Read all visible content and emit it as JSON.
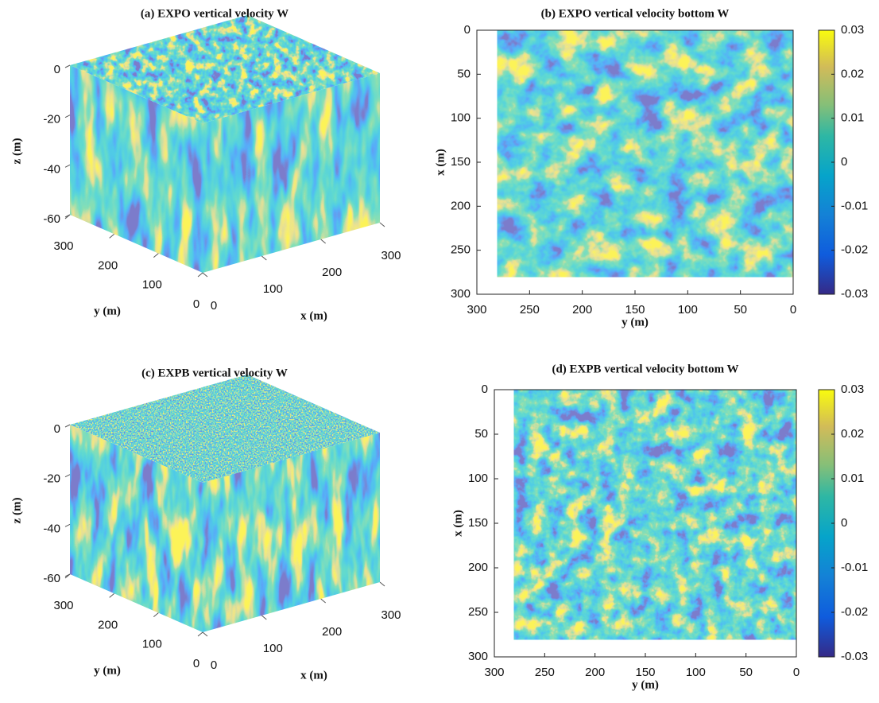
{
  "chart_data": [
    {
      "type": "box3d",
      "title": "(a) EXPO vertical velocity W",
      "xlabel": "x (m)",
      "ylabel": "y (m)",
      "zlabel": "z (m)",
      "xlim": [
        0,
        300
      ],
      "ylim": [
        0,
        300
      ],
      "zlim": [
        -60,
        0
      ],
      "xticks": [
        0,
        100,
        200,
        300
      ],
      "yticks": [
        0,
        100,
        200,
        300
      ],
      "zticks": [
        -60,
        -40,
        -20,
        0
      ]
    },
    {
      "type": "heatmap",
      "title": "(b) EXPO vertical velocity bottom W",
      "xlabel": "y (m)",
      "ylabel": "x (m)",
      "xlim": [
        300,
        0
      ],
      "ylim": [
        300,
        0
      ],
      "xticks": [
        300,
        250,
        200,
        150,
        100,
        50,
        0
      ],
      "yticks": [
        300,
        250,
        200,
        150,
        100,
        50,
        0
      ],
      "clim": [
        -0.03,
        0.03
      ],
      "cticks": [
        -0.03,
        -0.02,
        -0.01,
        0,
        0.01,
        0.02,
        0.03
      ]
    },
    {
      "type": "box3d",
      "title": "(c) EXPB vertical velocity W",
      "xlabel": "x (m)",
      "ylabel": "y (m)",
      "zlabel": "z (m)",
      "xlim": [
        0,
        300
      ],
      "ylim": [
        0,
        300
      ],
      "zlim": [
        -60,
        0
      ],
      "xticks": [
        0,
        100,
        200,
        300
      ],
      "yticks": [
        0,
        100,
        200,
        300
      ],
      "zticks": [
        -60,
        -40,
        -20,
        0
      ]
    },
    {
      "type": "heatmap",
      "title": "(d) EXPB vertical velocity bottom W",
      "xlabel": "y (m)",
      "ylabel": "x (m)",
      "xlim": [
        300,
        0
      ],
      "ylim": [
        300,
        0
      ],
      "xticks": [
        300,
        250,
        200,
        150,
        100,
        50,
        0
      ],
      "yticks": [
        300,
        250,
        200,
        150,
        100,
        50,
        0
      ],
      "clim": [
        -0.03,
        0.03
      ],
      "cticks": [
        -0.03,
        -0.02,
        -0.01,
        0,
        0.01,
        0.02,
        0.03
      ]
    }
  ]
}
